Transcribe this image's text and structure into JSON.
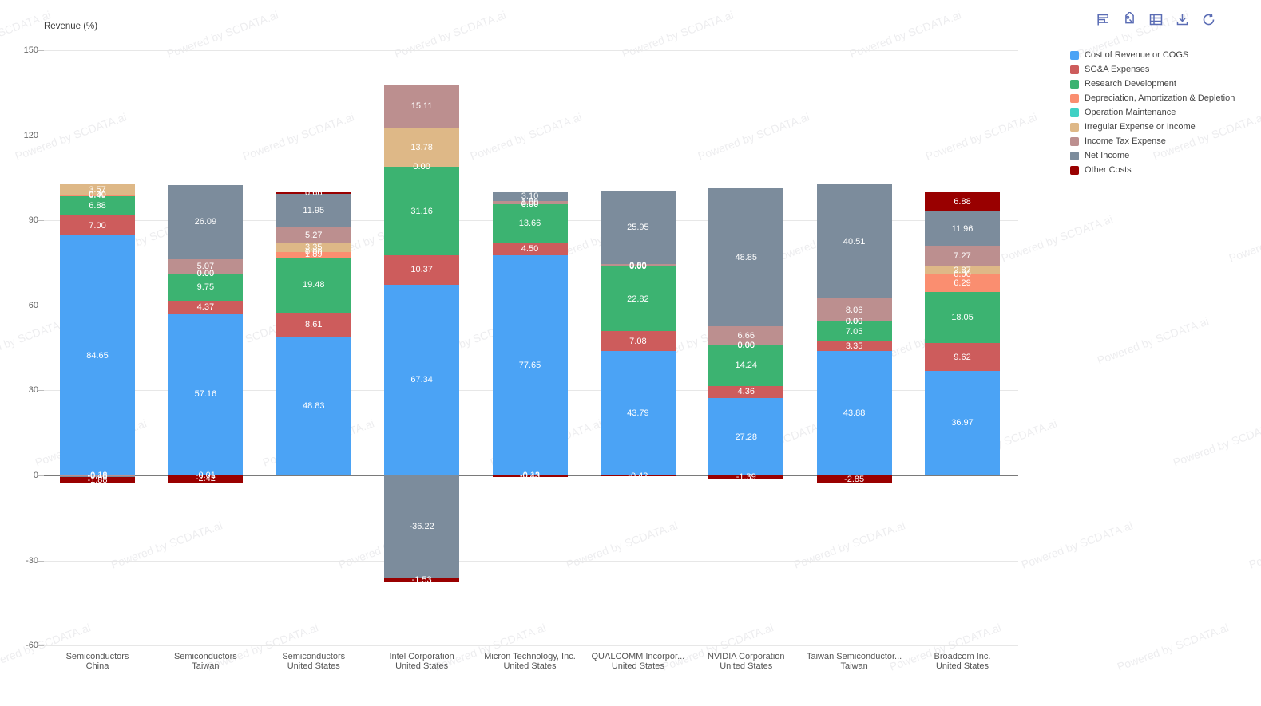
{
  "watermark": {
    "text": "Powered by SCDATA.ai"
  },
  "toolbar": {
    "color": "#5a6cb4",
    "buttons": [
      "bar-chart",
      "tag",
      "table",
      "download",
      "refresh"
    ]
  },
  "chart_data": {
    "type": "bar",
    "stacked": true,
    "title": "Revenue (%)",
    "ylabel": "Revenue (%)",
    "xlabel": "",
    "ylim": [
      -60,
      150
    ],
    "yticks": [
      150,
      120,
      90,
      60,
      30,
      0,
      -30,
      -60
    ],
    "grid": true,
    "legend_position": "right",
    "value_label_decimals": 2,
    "categories": [
      {
        "line1": "Semiconductors",
        "line2": "China"
      },
      {
        "line1": "Semiconductors",
        "line2": "Taiwan"
      },
      {
        "line1": "Semiconductors",
        "line2": "United States"
      },
      {
        "line1": "Intel Corporation",
        "line2": "United States"
      },
      {
        "line1": "Micron Technology, Inc.",
        "line2": "United States"
      },
      {
        "line1": "QUALCOMM Incorpor...",
        "line2": "United States"
      },
      {
        "line1": "NVIDIA Corporation",
        "line2": "United States"
      },
      {
        "line1": "Taiwan Semiconductor...",
        "line2": "Taiwan"
      },
      {
        "line1": "Broadcom Inc.",
        "line2": "United States"
      }
    ],
    "series": [
      {
        "name": "Cost of Revenue or COGS",
        "color": "#4BA3F5",
        "values": [
          84.65,
          57.16,
          48.83,
          67.34,
          77.65,
          43.79,
          27.28,
          43.88,
          36.97
        ]
      },
      {
        "name": "SG&A Expenses",
        "color": "#CD5C5C",
        "values": [
          7.0,
          4.37,
          8.61,
          10.37,
          4.5,
          7.08,
          4.36,
          3.35,
          9.62
        ]
      },
      {
        "name": "Research Development",
        "color": "#3CB371",
        "values": [
          6.88,
          9.75,
          19.48,
          31.16,
          13.66,
          22.82,
          14.24,
          7.05,
          18.05
        ]
      },
      {
        "name": "Depreciation, Amortization & Depletion",
        "color": "#FA8E70",
        "values": [
          0.49,
          -0.01,
          1.89,
          0.0,
          0.0,
          0.0,
          0.0,
          0.0,
          6.29
        ]
      },
      {
        "name": "Operation Maintenance",
        "color": "#40D1C4",
        "values": [
          0.0,
          0.0,
          0.0,
          0.0,
          0.0,
          0.0,
          0.0,
          0.0,
          0.0
        ]
      },
      {
        "name": "Irregular Expense or Income",
        "color": "#DEB887",
        "values": [
          3.57,
          0.0,
          3.35,
          13.78,
          -0.13,
          0.0,
          0.0,
          0.0,
          2.87
        ]
      },
      {
        "name": "Income Tax Expense",
        "color": "#BC8F8F",
        "values": [
          -0.18,
          5.07,
          5.27,
          15.11,
          1.0,
          0.8,
          6.66,
          8.06,
          7.27
        ]
      },
      {
        "name": "Net Income",
        "color": "#7C8C9C",
        "values": [
          -0.48,
          26.09,
          11.95,
          -36.22,
          3.1,
          25.95,
          48.85,
          40.51,
          11.96
        ]
      },
      {
        "name": "Other Costs",
        "color": "#990000",
        "values": [
          -1.88,
          -2.42,
          0.66,
          -1.53,
          -0.43,
          -0.42,
          -1.39,
          -2.85,
          6.88
        ]
      }
    ]
  }
}
